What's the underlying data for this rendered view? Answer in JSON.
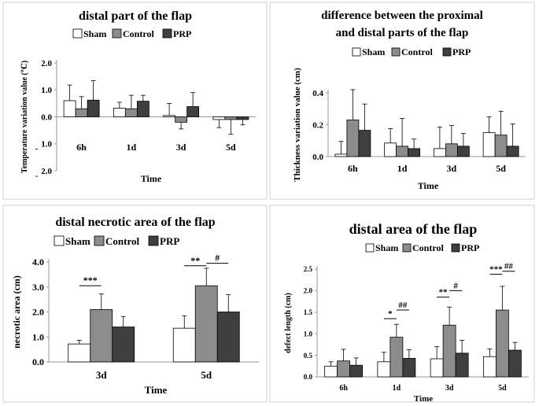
{
  "legend_labels": [
    "Sham",
    "Control",
    "PRP"
  ],
  "colors": {
    "sham": "#ffffff",
    "control": "#8c8c8c",
    "prp": "#3f3f3f",
    "stroke": "#000000"
  },
  "chart_data": [
    {
      "type": "bar",
      "title": "distal part of the flap",
      "xlabel": "Time",
      "ylabel": "Temperature variation value (℃)",
      "categories": [
        "6h",
        "1d",
        "3d",
        "5d"
      ],
      "ylim": [
        -2.0,
        2.0
      ],
      "yticks": [
        2.0,
        1.0,
        0.0,
        -1.0,
        -2.0
      ],
      "ytick_labels": [
        "2.0",
        "1.0",
        "0.0",
        "1.0",
        "2.0"
      ],
      "ytick_minus": "-",
      "legend": "top",
      "series": [
        {
          "name": "Sham",
          "values": [
            0.6,
            0.32,
            0.05,
            -0.1
          ],
          "errors": [
            0.58,
            0.22,
            0.45,
            0.3
          ]
        },
        {
          "name": "Control",
          "values": [
            0.3,
            0.3,
            -0.2,
            -0.1
          ],
          "errors": [
            0.45,
            0.5,
            0.25,
            0.55
          ]
        },
        {
          "name": "PRP",
          "values": [
            0.62,
            0.58,
            0.38,
            -0.1
          ],
          "errors": [
            0.72,
            0.22,
            0.52,
            0.2
          ]
        }
      ],
      "significance": []
    },
    {
      "type": "bar",
      "title_lines": [
        "difference between the proximal",
        "and distal parts of the flap"
      ],
      "xlabel": "Time",
      "ylabel": "Thickness variation value (cm)",
      "categories": [
        "6h",
        "1d",
        "3d",
        "5d"
      ],
      "ylim": [
        0,
        0.4
      ],
      "yticks": [
        0,
        0.2,
        0.4
      ],
      "ytick_labels": [
        "0.0",
        "0.2",
        "0.4"
      ],
      "legend": "top",
      "series": [
        {
          "name": "Sham",
          "values": [
            0.015,
            0.085,
            0.05,
            0.15
          ],
          "errors": [
            0.08,
            0.09,
            0.135,
            0.1
          ]
        },
        {
          "name": "Control",
          "values": [
            0.23,
            0.065,
            0.08,
            0.135
          ],
          "errors": [
            0.19,
            0.175,
            0.115,
            0.15
          ]
        },
        {
          "name": "PRP",
          "values": [
            0.165,
            0.05,
            0.065,
            0.065
          ],
          "errors": [
            0.165,
            0.06,
            0.08,
            0.14
          ]
        }
      ],
      "significance": []
    },
    {
      "type": "bar",
      "title": "distal necrotic area of the flap",
      "xlabel": "Time",
      "ylabel": "necrotic area (cm)",
      "categories": [
        "3d",
        "5d"
      ],
      "ylim": [
        0,
        4.0
      ],
      "yticks": [
        0,
        1.0,
        2.0,
        3.0,
        4.0
      ],
      "ytick_labels": [
        "0.0",
        "1.0",
        "2.0",
        "3.0",
        "4.0"
      ],
      "legend": "top",
      "series": [
        {
          "name": "Sham",
          "values": [
            0.72,
            1.35
          ],
          "errors": [
            0.15,
            0.5
          ]
        },
        {
          "name": "Control",
          "values": [
            2.1,
            3.05
          ],
          "errors": [
            0.62,
            0.7
          ]
        },
        {
          "name": "PRP",
          "values": [
            1.4,
            2.0
          ],
          "errors": [
            0.42,
            0.7
          ]
        }
      ],
      "significance": [
        {
          "cat": 0,
          "from": 0,
          "to": 1,
          "y": 3.05,
          "label": "***"
        },
        {
          "cat": 1,
          "from": 0,
          "to": 1,
          "y": 3.85,
          "label": "**"
        },
        {
          "cat": 1,
          "from": 1,
          "to": 2,
          "y": 3.95,
          "label": "#"
        }
      ]
    },
    {
      "type": "bar",
      "title": "distal area of the flap",
      "xlabel": "Time",
      "ylabel": "defect length (cm)",
      "categories": [
        "6h",
        "1d",
        "3d",
        "5d"
      ],
      "ylim": [
        0,
        2.5
      ],
      "yticks": [
        0,
        0.5,
        1.0,
        1.5,
        2.0,
        2.5
      ],
      "ytick_labels": [
        "0.0",
        "0.5",
        "1.0",
        "1.5",
        "2.0",
        "2.5"
      ],
      "legend": "top",
      "series": [
        {
          "name": "Sham",
          "values": [
            0.25,
            0.35,
            0.42,
            0.47
          ],
          "errors": [
            0.1,
            0.22,
            0.28,
            0.18
          ]
        },
        {
          "name": "Control",
          "values": [
            0.37,
            0.92,
            1.2,
            1.55
          ],
          "errors": [
            0.27,
            0.3,
            0.42,
            0.55
          ]
        },
        {
          "name": "PRP",
          "values": [
            0.27,
            0.43,
            0.55,
            0.62
          ],
          "errors": [
            0.17,
            0.2,
            0.3,
            0.18
          ]
        }
      ],
      "significance": [
        {
          "cat": 1,
          "from": 0,
          "to": 1,
          "y": 1.35,
          "label": "*"
        },
        {
          "cat": 1,
          "from": 1,
          "to": 2,
          "y": 1.55,
          "label": "##"
        },
        {
          "cat": 2,
          "from": 0,
          "to": 1,
          "y": 1.85,
          "label": "**"
        },
        {
          "cat": 2,
          "from": 1,
          "to": 2,
          "y": 2.0,
          "label": "#"
        },
        {
          "cat": 3,
          "from": 0,
          "to": 1,
          "y": 2.38,
          "label": "***"
        },
        {
          "cat": 3,
          "from": 1,
          "to": 2,
          "y": 2.45,
          "label": "##"
        }
      ]
    }
  ]
}
